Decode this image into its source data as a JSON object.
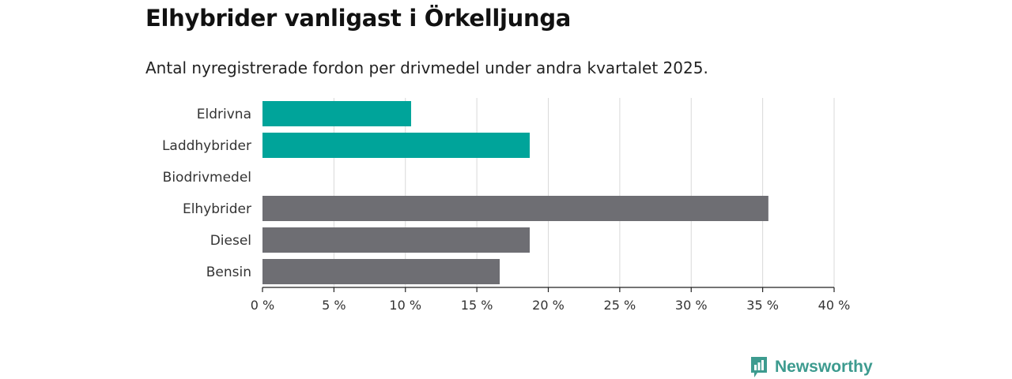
{
  "title": "Elhybrider vanligast i Örkelljunga",
  "subtitle": "Antal nyregistrerade fordon per drivmedel under andra kvartalet 2025.",
  "brand": {
    "name": "Newsworthy",
    "color": "#3d9b8f"
  },
  "chart_data": {
    "type": "bar",
    "orientation": "horizontal",
    "categories": [
      "Eldrivna",
      "Laddhybrider",
      "Biodrivmedel",
      "Elhybrider",
      "Diesel",
      "Bensin"
    ],
    "values": [
      10.4,
      18.7,
      0,
      35.4,
      18.7,
      16.6
    ],
    "colors": [
      "#00a49a",
      "#00a49a",
      "#00a49a",
      "#6e6e73",
      "#6e6e73",
      "#6e6e73"
    ],
    "xlim": [
      0,
      40
    ],
    "xticks": [
      0,
      5,
      10,
      15,
      20,
      25,
      30,
      35,
      40
    ],
    "xtick_labels": [
      "0 %",
      "5 %",
      "10 %",
      "15 %",
      "20 %",
      "25 %",
      "30 %",
      "35 %",
      "40 %"
    ],
    "unit": "%",
    "grid": true
  }
}
